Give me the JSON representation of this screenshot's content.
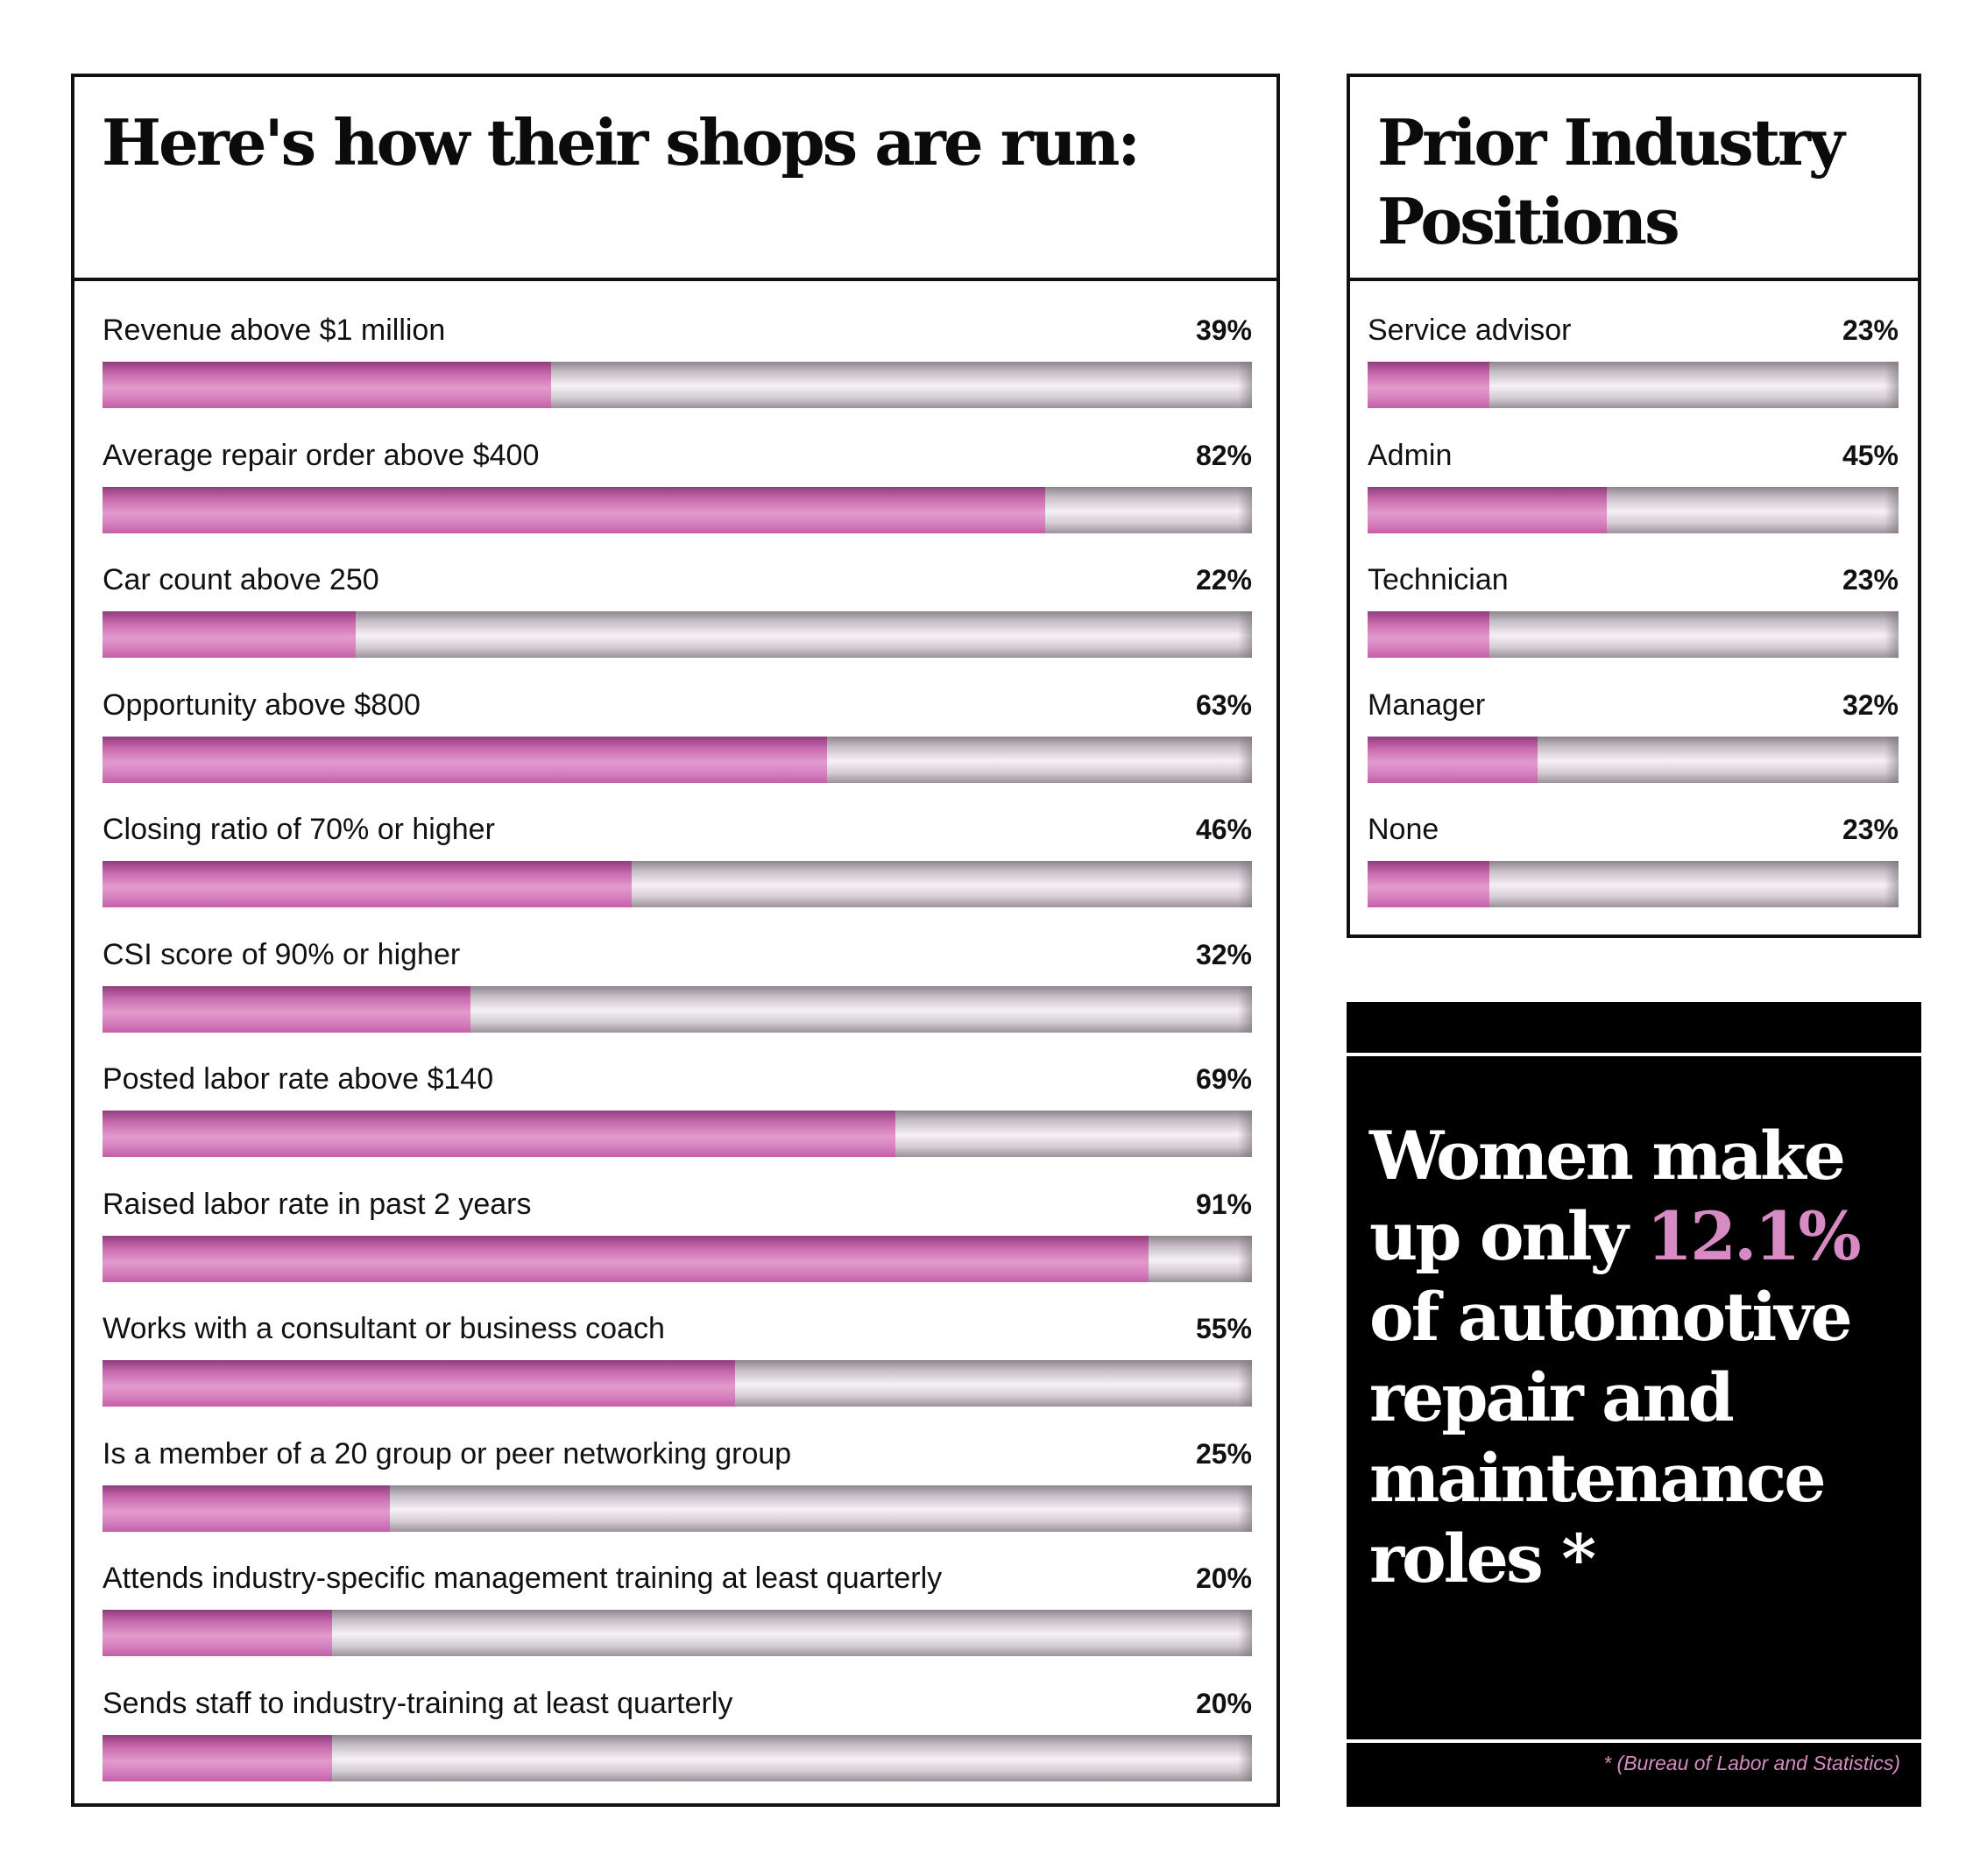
{
  "colors": {
    "accent": "#d68bc4",
    "fill": "#d57ebe",
    "track": "#c6bfc6",
    "ink": "#111111",
    "callout_bg": "#000000"
  },
  "chart_data": [
    {
      "type": "bar",
      "orientation": "horizontal",
      "title": "Here's how their shops are run:",
      "unit": "%",
      "xlim": [
        0,
        100
      ],
      "categories": [
        "Revenue above $1 million",
        "Average repair order above $400",
        "Car count above 250",
        "Opportunity above $800",
        "Closing ratio of 70% or higher",
        "CSI score of 90% or higher",
        "Posted labor rate above $140",
        "Raised labor rate in past 2 years",
        "Works with a consultant or business coach",
        "Is a member of a 20 group or peer networking group",
        "Attends industry-specific management training at least quarterly",
        "Sends staff to industry-training at least quarterly"
      ],
      "values": [
        39,
        82,
        22,
        63,
        46,
        32,
        69,
        91,
        55,
        25,
        20,
        20
      ],
      "labels": [
        "39%",
        "82%",
        "22%",
        "63%",
        "46%",
        "32%",
        "69%",
        "91%",
        "55%",
        "25%",
        "20%",
        "20%"
      ]
    },
    {
      "type": "bar",
      "orientation": "horizontal",
      "title": "Prior Industry Positions",
      "unit": "%",
      "xlim": [
        0,
        100
      ],
      "categories": [
        "Service advisor",
        "Admin",
        "Technician",
        "Manager",
        "None"
      ],
      "values": [
        23,
        45,
        23,
        32,
        23
      ],
      "labels": [
        "23%",
        "45%",
        "23%",
        "32%",
        "23%"
      ]
    }
  ],
  "callout": {
    "before": "Women make up only ",
    "highlight": "12.1%",
    "after": " of automotive repair and maintenance roles",
    "asterisk": " *",
    "source": "* (Bureau of Labor and Statistics)"
  }
}
